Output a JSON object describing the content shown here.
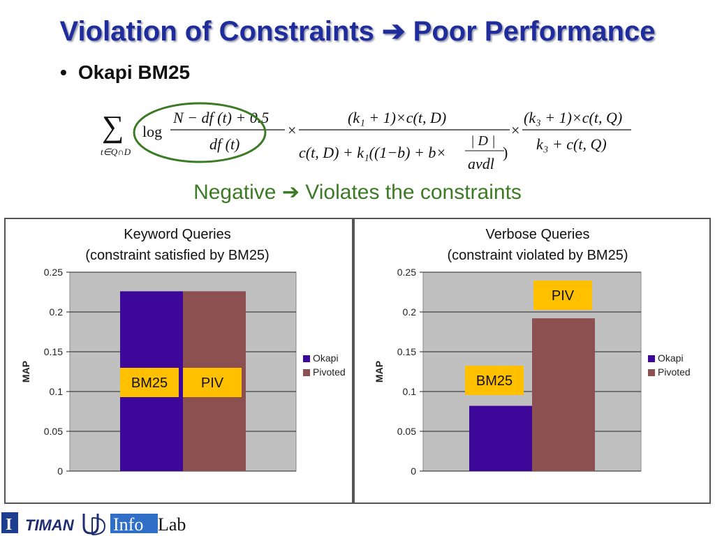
{
  "slide": {
    "title": "Violation of Constraints ➔ Poor Performance",
    "bullet": "Okapi BM25",
    "negative_note": "Negative ➔ Violates the constraints"
  },
  "formula": {
    "sum": "∑",
    "sum_sub": "t∈Q∩D",
    "log": "log",
    "idf_num": "N − df (t) + 0.5",
    "idf_den": "df (t)",
    "times": "×",
    "tf_num": "(k₁ + 1)×c(t, D)",
    "tf_den": "c(t, D) + k₁((1−b) + b×",
    "tf_den_close": ")",
    "len_num": "| D |",
    "len_den": "avdl",
    "qtf_num": "(k₃ + 1)×c(t, Q)",
    "qtf_den": "k₃ + c(t, Q)"
  },
  "legend": {
    "okapi": "Okapi",
    "pivoted": "Pivoted"
  },
  "colors": {
    "okapi": "#3d0799",
    "pivoted": "#8b504f",
    "plot_bg": "#c0c0c0",
    "label_box": "#ffc000",
    "title": "#1f2d9c",
    "negative": "#3d7a25",
    "ellipse": "#3d7a25"
  },
  "chart_data": [
    {
      "type": "bar",
      "title": "Keyword Queries",
      "subtitle": "(constraint satisfied by BM25)",
      "ylabel": "MAP",
      "xlabel": "",
      "ylim": [
        0,
        0.25
      ],
      "yticks": [
        "0",
        "0.05",
        "0.1",
        "0.15",
        "0.2",
        "0.25"
      ],
      "grid": true,
      "legend_position": "right",
      "series": [
        {
          "name": "Okapi",
          "values": [
            0.226
          ]
        },
        {
          "name": "Pivoted",
          "values": [
            0.226
          ]
        }
      ],
      "annotations": [
        "BM25",
        "PIV"
      ]
    },
    {
      "type": "bar",
      "title": "Verbose Queries",
      "subtitle": "(constraint violated by BM25)",
      "ylabel": "MAP",
      "xlabel": "",
      "ylim": [
        0,
        0.25
      ],
      "yticks": [
        "0",
        "0.05",
        "0.1",
        "0.15",
        "0.2",
        "0.25"
      ],
      "grid": true,
      "legend_position": "right",
      "series": [
        {
          "name": "Okapi",
          "values": [
            0.082
          ]
        },
        {
          "name": "Pivoted",
          "values": [
            0.192
          ]
        }
      ],
      "annotations": [
        "BM25",
        "PIV"
      ]
    }
  ],
  "logos": {
    "illinois": "I",
    "timan": "TIMAN",
    "infolab_a": "Info",
    "infolab_b": "Lab"
  }
}
